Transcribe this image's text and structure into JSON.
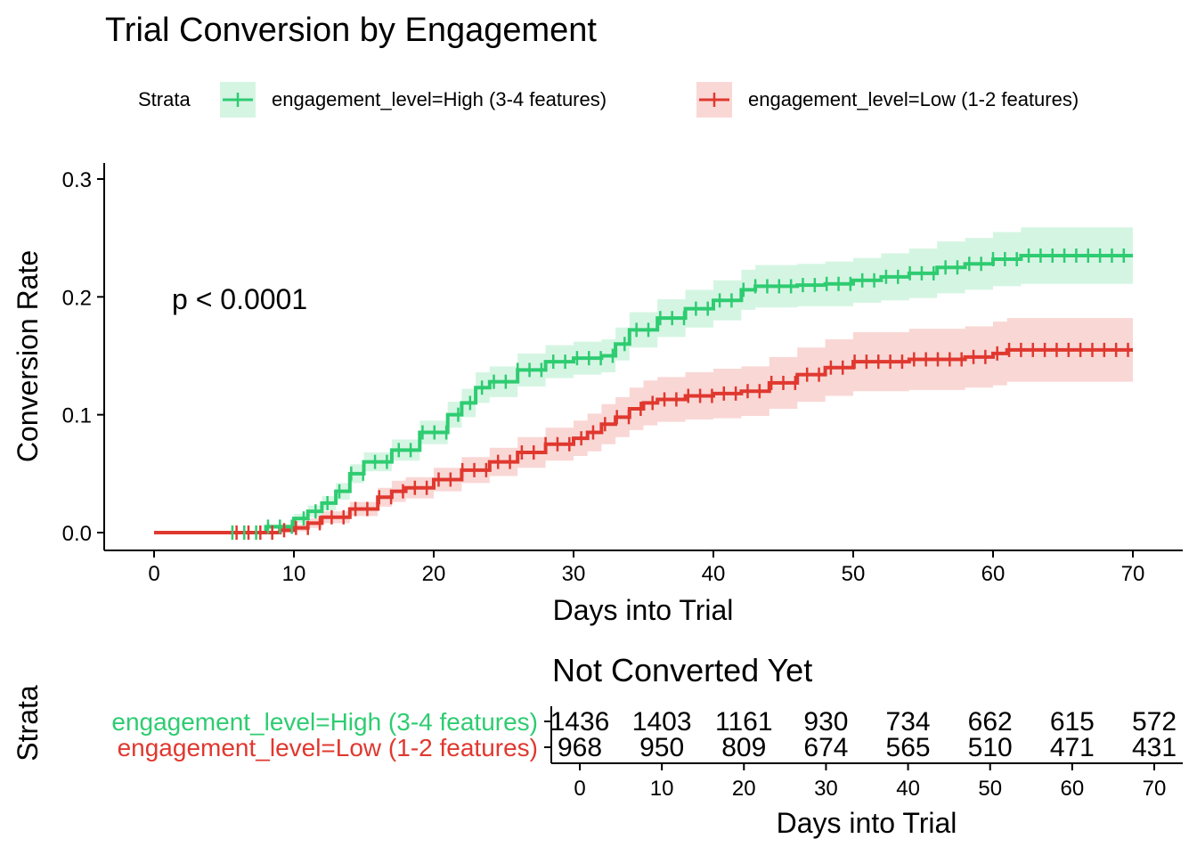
{
  "chart_data": {
    "type": "line",
    "subtype": "kaplan-meier cumulative incidence with confidence bands",
    "title": "Trial Conversion by Engagement",
    "xlabel": "Days into Trial",
    "ylabel": "Conversion Rate",
    "xlim": [
      0,
      70
    ],
    "ylim": [
      0,
      0.3
    ],
    "x_ticks": [
      "0",
      "10",
      "20",
      "30",
      "40",
      "50",
      "60",
      "70"
    ],
    "y_ticks": [
      "0.0",
      "0.1",
      "0.2",
      "0.3"
    ],
    "grid": false,
    "legend": {
      "title": "Strata",
      "position": "top",
      "entries": [
        "engagement_level=High (3-4 features)",
        "engagement_level=Low (1-2 features)"
      ]
    },
    "annotation": "p < 0.0001",
    "series": [
      {
        "name": "engagement_level=High (3-4 features)",
        "color": "#2ecc71",
        "x": [
          0,
          5.5,
          8,
          10,
          11,
          12,
          13,
          14,
          15,
          17,
          19,
          21,
          22,
          23,
          24,
          26,
          28,
          30,
          32,
          33,
          34,
          36,
          38,
          40,
          42,
          43,
          46,
          48,
          50,
          52,
          54,
          56,
          58,
          60,
          62,
          65,
          70
        ],
        "y": [
          0,
          0,
          0.005,
          0.012,
          0.018,
          0.025,
          0.035,
          0.05,
          0.06,
          0.07,
          0.085,
          0.1,
          0.11,
          0.123,
          0.128,
          0.138,
          0.145,
          0.148,
          0.15,
          0.16,
          0.172,
          0.182,
          0.19,
          0.197,
          0.206,
          0.209,
          0.21,
          0.211,
          0.214,
          0.217,
          0.22,
          0.225,
          0.228,
          0.232,
          0.235,
          0.235,
          0.235
        ],
        "ci_lower": [
          0,
          0,
          0.003,
          0.008,
          0.013,
          0.019,
          0.028,
          0.042,
          0.052,
          0.061,
          0.075,
          0.089,
          0.098,
          0.11,
          0.115,
          0.124,
          0.131,
          0.134,
          0.136,
          0.146,
          0.157,
          0.166,
          0.174,
          0.18,
          0.189,
          0.191,
          0.192,
          0.192,
          0.195,
          0.197,
          0.199,
          0.203,
          0.206,
          0.209,
          0.211,
          0.211,
          0.211
        ],
        "ci_upper": [
          0,
          0,
          0.007,
          0.016,
          0.023,
          0.031,
          0.042,
          0.058,
          0.068,
          0.079,
          0.095,
          0.111,
          0.122,
          0.136,
          0.141,
          0.152,
          0.159,
          0.162,
          0.164,
          0.174,
          0.187,
          0.198,
          0.206,
          0.214,
          0.223,
          0.227,
          0.228,
          0.23,
          0.233,
          0.237,
          0.241,
          0.247,
          0.25,
          0.255,
          0.259,
          0.259,
          0.259
        ]
      },
      {
        "name": "engagement_level=Low (1-2 features)",
        "color": "#e0382f",
        "x": [
          0,
          5.5,
          9,
          10,
          11,
          12,
          14,
          16,
          17,
          18,
          20,
          22,
          24,
          26,
          28,
          30,
          31,
          32,
          33,
          34,
          35,
          36,
          38,
          40,
          42,
          44,
          46,
          48,
          50,
          54,
          58,
          60,
          61,
          62,
          70
        ],
        "y": [
          0,
          0,
          0.002,
          0.004,
          0.008,
          0.013,
          0.02,
          0.03,
          0.035,
          0.038,
          0.045,
          0.053,
          0.06,
          0.068,
          0.075,
          0.08,
          0.085,
          0.092,
          0.098,
          0.105,
          0.11,
          0.113,
          0.116,
          0.118,
          0.12,
          0.127,
          0.134,
          0.14,
          0.145,
          0.147,
          0.149,
          0.152,
          0.155,
          0.155,
          0.155
        ],
        "ci_lower": [
          0,
          0,
          0,
          0.001,
          0.004,
          0.008,
          0.014,
          0.022,
          0.026,
          0.029,
          0.035,
          0.042,
          0.048,
          0.055,
          0.061,
          0.065,
          0.069,
          0.075,
          0.081,
          0.087,
          0.091,
          0.094,
          0.096,
          0.097,
          0.099,
          0.105,
          0.111,
          0.116,
          0.12,
          0.121,
          0.123,
          0.125,
          0.128,
          0.128,
          0.128
        ],
        "ci_upper": [
          0,
          0,
          0.004,
          0.007,
          0.012,
          0.018,
          0.026,
          0.038,
          0.044,
          0.047,
          0.055,
          0.064,
          0.072,
          0.081,
          0.089,
          0.095,
          0.101,
          0.109,
          0.115,
          0.123,
          0.129,
          0.132,
          0.136,
          0.139,
          0.141,
          0.149,
          0.157,
          0.164,
          0.17,
          0.173,
          0.175,
          0.179,
          0.182,
          0.182,
          0.182
        ]
      }
    ],
    "risk_table": {
      "title": "Not Converted Yet",
      "ylabel": "Strata",
      "xlabel": "Days into Trial",
      "times": [
        0,
        10,
        20,
        30,
        40,
        50,
        60,
        70
      ],
      "x_ticks": [
        "0",
        "10",
        "20",
        "30",
        "40",
        "50",
        "60",
        "70"
      ],
      "rows": [
        {
          "label": "engagement_level=High (3-4 features)",
          "color": "#2ecc71",
          "counts": [
            "1436",
            "1403",
            "1161",
            "930",
            "734",
            "662",
            "615",
            "572"
          ]
        },
        {
          "label": "engagement_level=Low (1-2 features)",
          "color": "#e0382f",
          "counts": [
            "968",
            "950",
            "809",
            "674",
            "565",
            "510",
            "471",
            "431"
          ]
        }
      ]
    }
  }
}
